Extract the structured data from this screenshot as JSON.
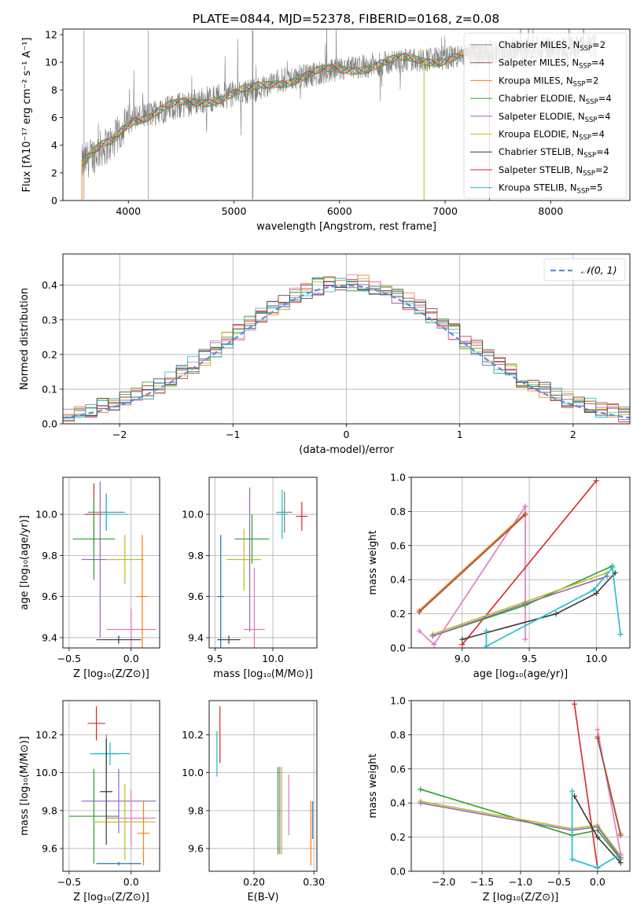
{
  "figure": {
    "title": "PLATE=0844, MJD=52378, FIBERID=0168, z=0.08"
  },
  "colors": [
    "#d62728",
    "#2ca02c",
    "#ff7f0e",
    "#1f77b4",
    "#9467bd",
    "#bcbd22",
    "#8c564b",
    "#e377c2",
    "#17becf"
  ],
  "chart_data": [
    {
      "id": "spectrum",
      "type": "line",
      "xlabel": "wavelength [Angstrom, rest frame]",
      "ylabel": "Flux [fλ10⁻¹⁷ erg cm⁻² s⁻¹ A⁻¹]",
      "xlim": [
        3380,
        8750
      ],
      "ylim": [
        0,
        12.4
      ],
      "xticks": [
        4000,
        5000,
        6000,
        7000,
        8000
      ],
      "yticks": [
        0,
        2,
        4,
        6,
        8,
        10,
        12
      ],
      "grid": false,
      "legend_position": "top-right",
      "data_color": "#7f7f7f",
      "continuum": [
        [
          3550,
          2.6
        ],
        [
          3650,
          3.2
        ],
        [
          3750,
          3.8
        ],
        [
          3850,
          4.2
        ],
        [
          3950,
          5.3
        ],
        [
          4050,
          6.0
        ],
        [
          4200,
          6.2
        ],
        [
          4400,
          6.7
        ],
        [
          4600,
          7.1
        ],
        [
          4800,
          7.4
        ],
        [
          5000,
          7.7
        ],
        [
          5200,
          8.0
        ],
        [
          5400,
          8.6
        ],
        [
          5600,
          8.9
        ],
        [
          5800,
          9.2
        ],
        [
          6000,
          9.4
        ],
        [
          6200,
          9.7
        ],
        [
          6400,
          9.9
        ],
        [
          6600,
          10.1
        ],
        [
          6800,
          10.2
        ],
        [
          7000,
          10.3
        ],
        [
          7200,
          10.5
        ],
        [
          7400,
          10.7
        ],
        [
          7600,
          10.8
        ],
        [
          7800,
          10.9
        ],
        [
          8000,
          11.0
        ],
        [
          8200,
          11.1
        ],
        [
          8400,
          11.2
        ]
      ],
      "series": [
        {
          "name": "Chabrier MILES, N_SSP=2",
          "color": "#7f7f7f"
        },
        {
          "name": "Salpeter MILES, N_SSP=4",
          "color": "#8c564b"
        },
        {
          "name": "Kroupa MILES, N_SSP=2",
          "color": "#ff7f0e"
        },
        {
          "name": "Chabrier ELODIE, N_SSP=4",
          "color": "#2ca02c"
        },
        {
          "name": "Salpeter ELODIE, N_SSP=4",
          "color": "#9467bd"
        },
        {
          "name": "Kroupa ELODIE, N_SSP=4",
          "color": "#bcbd22"
        },
        {
          "name": "Chabrier STELIB, N_SSP=4",
          "color": "#3a3a3a"
        },
        {
          "name": "Salpeter STELIB, N_SSP=2",
          "color": "#d62728"
        },
        {
          "name": "Kroupa STELIB, N_SSP=5",
          "color": "#17becf"
        }
      ]
    },
    {
      "id": "residuals",
      "type": "line",
      "xlabel": "(data-model)/error",
      "ylabel": "Normed distribution",
      "xlim": [
        -2.5,
        2.5
      ],
      "ylim": [
        0,
        0.49
      ],
      "xticks": [
        -2,
        -1,
        0,
        1,
        2
      ],
      "yticks": [
        0.0,
        0.1,
        0.2,
        0.3,
        0.4
      ],
      "grid": true,
      "legend_position": "top-right",
      "normal_label": "𝒩(0, 1)",
      "normal_color": "#5b8fd9",
      "bin_width": 0.1
    },
    {
      "id": "age-z",
      "type": "scatter",
      "xlabel": "Z [log₁₀(Z/Z⊙)]",
      "ylabel": "age  [log₁₀(age/yr)]",
      "xlim": [
        -0.55,
        0.23
      ],
      "ylim": [
        9.35,
        10.18
      ],
      "xticks": [
        -0.5,
        0.0
      ],
      "yticks": [
        9.4,
        9.6,
        9.8,
        10.0
      ],
      "grid": true,
      "errorbars": [
        {
          "x": -0.2,
          "y": 10.01,
          "xerr": 0.15,
          "yerr": 0.09,
          "color": "#7f7f7f"
        },
        {
          "x": -0.2,
          "y": 10.0,
          "xerr": 0.18,
          "yerr": 0.08,
          "color": "#17becf"
        },
        {
          "x": -0.3,
          "y": 10.0,
          "xerr": 0.07,
          "yerr": 0.15,
          "color": "#d62728"
        },
        {
          "x": -0.3,
          "y": 9.88,
          "xerr": 0.17,
          "yerr": 0.2,
          "color": "#2ca02c"
        },
        {
          "x": -0.25,
          "y": 9.78,
          "xerr": 0.15,
          "yerr": 0.38,
          "color": "#9467bd"
        },
        {
          "x": -0.05,
          "y": 9.78,
          "xerr": 0.15,
          "yerr": 0.12,
          "color": "#bcbd22"
        },
        {
          "x": 0.0,
          "y": 9.44,
          "xerr": 0.2,
          "yerr": 0.1,
          "color": "#e377c2"
        },
        {
          "x": 0.09,
          "y": 9.6,
          "xerr": 0.05,
          "yerr": 0.3,
          "color": "#ff7f0e"
        },
        {
          "x": -0.1,
          "y": 9.39,
          "xerr": 0.18,
          "yerr": 0.02,
          "color": "#3a3a3a"
        }
      ]
    },
    {
      "id": "age-mass",
      "type": "scatter",
      "xlabel": "mass [log₁₀(M/M⊙)]",
      "ylabel": "",
      "xlim": [
        9.45,
        10.38
      ],
      "ylim": [
        9.35,
        10.18
      ],
      "xticks": [
        9.5,
        10.0
      ],
      "yticks": [
        9.4,
        9.6,
        9.8,
        10.0
      ],
      "grid": true,
      "errorbars": [
        {
          "x": 10.1,
          "y": 10.01,
          "xerr": 0.07,
          "yerr": 0.1,
          "color": "#7f7f7f"
        },
        {
          "x": 10.08,
          "y": 10.0,
          "xerr": 0.05,
          "yerr": 0.12,
          "color": "#17becf"
        },
        {
          "x": 10.25,
          "y": 9.99,
          "xerr": 0.05,
          "yerr": 0.07,
          "color": "#d62728"
        },
        {
          "x": 9.82,
          "y": 9.88,
          "xerr": 0.15,
          "yerr": 0.12,
          "color": "#2ca02c"
        },
        {
          "x": 9.8,
          "y": 9.78,
          "xerr": 0.07,
          "yerr": 0.35,
          "color": "#9467bd"
        },
        {
          "x": 9.75,
          "y": 9.78,
          "xerr": 0.15,
          "yerr": 0.15,
          "color": "#bcbd22"
        },
        {
          "x": 9.84,
          "y": 9.44,
          "xerr": 0.09,
          "yerr": 0.3,
          "color": "#e377c2"
        },
        {
          "x": 9.55,
          "y": 9.6,
          "xerr": 0.03,
          "yerr": 0.3,
          "color": "#1f77b4"
        },
        {
          "x": 9.62,
          "y": 9.39,
          "xerr": 0.1,
          "yerr": 0.02,
          "color": "#3a3a3a"
        }
      ]
    },
    {
      "id": "weight-age",
      "type": "line",
      "xlabel": "age  [log₁₀(age/yr)]",
      "ylabel": "mass weight",
      "xlim": [
        8.62,
        10.25
      ],
      "ylim": [
        0,
        1.0
      ],
      "xticks": [
        9.0,
        9.5,
        10.0
      ],
      "yticks": [
        0.0,
        0.2,
        0.4,
        0.6,
        0.8,
        1.0
      ],
      "grid": true,
      "series": [
        {
          "color": "#e377c2",
          "points": [
            [
              8.68,
              0.1
            ],
            [
              8.79,
              0.02
            ],
            [
              9.47,
              0.83
            ],
            [
              9.47,
              0.05
            ]
          ]
        },
        {
          "color": "#ff7f0e",
          "points": [
            [
              8.68,
              0.22
            ],
            [
              9.47,
              0.79
            ]
          ]
        },
        {
          "color": "#8c564b",
          "points": [
            [
              8.68,
              0.21
            ],
            [
              9.47,
              0.78
            ]
          ]
        },
        {
          "color": "#d62728",
          "points": [
            [
              9.0,
              0.02
            ],
            [
              10.0,
              0.98
            ]
          ]
        },
        {
          "color": "#2ca02c",
          "points": [
            [
              8.78,
              0.07
            ],
            [
              9.47,
              0.25
            ],
            [
              10.12,
              0.48
            ]
          ]
        },
        {
          "color": "#bcbd22",
          "points": [
            [
              8.78,
              0.08
            ],
            [
              9.47,
              0.27
            ],
            [
              10.08,
              0.44
            ]
          ]
        },
        {
          "color": "#9467bd",
          "points": [
            [
              8.78,
              0.07
            ],
            [
              9.47,
              0.26
            ],
            [
              10.08,
              0.42
            ]
          ]
        },
        {
          "color": "#3a3a3a",
          "points": [
            [
              9.0,
              0.05
            ],
            [
              9.7,
              0.2
            ],
            [
              10.0,
              0.32
            ],
            [
              10.14,
              0.44
            ]
          ]
        },
        {
          "color": "#17becf",
          "points": [
            [
              9.18,
              0.1
            ],
            [
              9.18,
              0.01
            ],
            [
              9.98,
              0.34
            ],
            [
              10.12,
              0.47
            ],
            [
              10.18,
              0.08
            ]
          ]
        }
      ]
    },
    {
      "id": "mass-z",
      "type": "scatter",
      "xlabel": "Z [log₁₀(Z/Z⊙)]",
      "ylabel": "mass [log₁₀(M/M⊙)]",
      "xlim": [
        -0.55,
        0.23
      ],
      "ylim": [
        9.48,
        10.38
      ],
      "xticks": [
        -0.5,
        0.0
      ],
      "yticks": [
        9.6,
        9.8,
        10.0,
        10.2
      ],
      "grid": true,
      "errorbars": [
        {
          "x": -0.2,
          "y": 10.1,
          "xerr": 0.09,
          "yerr": 0.1,
          "color": "#7f7f7f"
        },
        {
          "x": -0.17,
          "y": 10.1,
          "xerr": 0.16,
          "yerr": 0.06,
          "color": "#17becf"
        },
        {
          "x": -0.28,
          "y": 10.26,
          "xerr": 0.07,
          "yerr": 0.09,
          "color": "#d62728"
        },
        {
          "x": -0.3,
          "y": 9.77,
          "xerr": 0.2,
          "yerr": 0.25,
          "color": "#2ca02c"
        },
        {
          "x": -0.1,
          "y": 9.85,
          "xerr": 0.3,
          "yerr": 0.17,
          "color": "#9467bd"
        },
        {
          "x": -0.05,
          "y": 9.74,
          "xerr": 0.25,
          "yerr": 0.2,
          "color": "#bcbd22"
        },
        {
          "x": 0.0,
          "y": 9.76,
          "xerr": 0.2,
          "yerr": 0.15,
          "color": "#e377c2"
        },
        {
          "x": 0.1,
          "y": 9.68,
          "xerr": 0.05,
          "yerr": 0.17,
          "color": "#ff7f0e"
        },
        {
          "x": -0.1,
          "y": 9.52,
          "xerr": 0.18,
          "yerr": 0.01,
          "color": "#1f77b4"
        },
        {
          "x": -0.2,
          "y": 9.9,
          "xerr": 0.05,
          "yerr": 0.28,
          "color": "#3a3a3a"
        }
      ]
    },
    {
      "id": "mass-ebv",
      "type": "scatter",
      "xlabel": "E(B-V)",
      "ylabel": "",
      "xlim": [
        0.125,
        0.305
      ],
      "ylim": [
        9.48,
        10.38
      ],
      "xticks": [
        0.2,
        0.3
      ],
      "yticks": [
        9.6,
        9.8,
        10.0,
        10.2
      ],
      "grid": true,
      "errorbars": [
        {
          "x": 0.138,
          "y": 10.1,
          "xerr": 0,
          "yerr": 0.12,
          "color": "#17becf"
        },
        {
          "x": 0.143,
          "y": 10.2,
          "xerr": 0,
          "yerr": 0.15,
          "color": "#d62728"
        },
        {
          "x": 0.24,
          "y": 9.8,
          "xerr": 0,
          "yerr": 0.23,
          "color": "#2ca02c"
        },
        {
          "x": 0.243,
          "y": 9.8,
          "xerr": 0,
          "yerr": 0.23,
          "color": "#9467bd"
        },
        {
          "x": 0.246,
          "y": 9.8,
          "xerr": 0,
          "yerr": 0.23,
          "color": "#bcbd22"
        },
        {
          "x": 0.258,
          "y": 9.83,
          "xerr": 0,
          "yerr": 0.16,
          "color": "#e377c2"
        },
        {
          "x": 0.295,
          "y": 9.68,
          "xerr": 0,
          "yerr": 0.17,
          "color": "#ff7f0e"
        },
        {
          "x": 0.298,
          "y": 9.75,
          "xerr": 0,
          "yerr": 0.1,
          "color": "#1f77b4"
        }
      ]
    },
    {
      "id": "weight-z",
      "type": "line",
      "xlabel": "Z [log₁₀(Z/Z⊙)]",
      "ylabel": "mass weight",
      "xlim": [
        -2.42,
        0.42
      ],
      "ylim": [
        0,
        1.0
      ],
      "xticks": [
        -2.0,
        -1.5,
        -1.0,
        -0.5,
        0.0
      ],
      "yticks": [
        0.0,
        0.2,
        0.4,
        0.6,
        0.8,
        1.0
      ],
      "grid": true,
      "series": [
        {
          "color": "#2ca02c",
          "points": [
            [
              -2.3,
              0.48
            ],
            [
              -0.33,
              0.21
            ],
            [
              0.0,
              0.24
            ],
            [
              0.3,
              0.07
            ]
          ]
        },
        {
          "color": "#bcbd22",
          "points": [
            [
              -2.3,
              0.41
            ],
            [
              -0.33,
              0.25
            ],
            [
              0.0,
              0.27
            ],
            [
              0.3,
              0.09
            ]
          ]
        },
        {
          "color": "#9467bd",
          "points": [
            [
              -2.3,
              0.4
            ],
            [
              -0.33,
              0.24
            ],
            [
              0.0,
              0.26
            ],
            [
              0.3,
              0.08
            ]
          ]
        },
        {
          "color": "#d62728",
          "points": [
            [
              -0.3,
              0.98
            ],
            [
              0.0,
              0.02
            ]
          ]
        },
        {
          "color": "#3a3a3a",
          "points": [
            [
              -0.3,
              0.44
            ],
            [
              0.0,
              0.2
            ],
            [
              0.3,
              0.05
            ]
          ]
        },
        {
          "color": "#17becf",
          "points": [
            [
              -0.33,
              0.47
            ],
            [
              -0.33,
              0.07
            ],
            [
              0.0,
              0.02
            ],
            [
              0.3,
              0.1
            ]
          ]
        },
        {
          "color": "#ff7f0e",
          "points": [
            [
              0.0,
              0.79
            ],
            [
              0.3,
              0.22
            ]
          ]
        },
        {
          "color": "#e377c2",
          "points": [
            [
              0.0,
              0.83
            ],
            [
              0.3,
              0.1
            ]
          ]
        },
        {
          "color": "#8c564b",
          "points": [
            [
              0.0,
              0.78
            ],
            [
              0.3,
              0.21
            ]
          ]
        }
      ]
    }
  ]
}
